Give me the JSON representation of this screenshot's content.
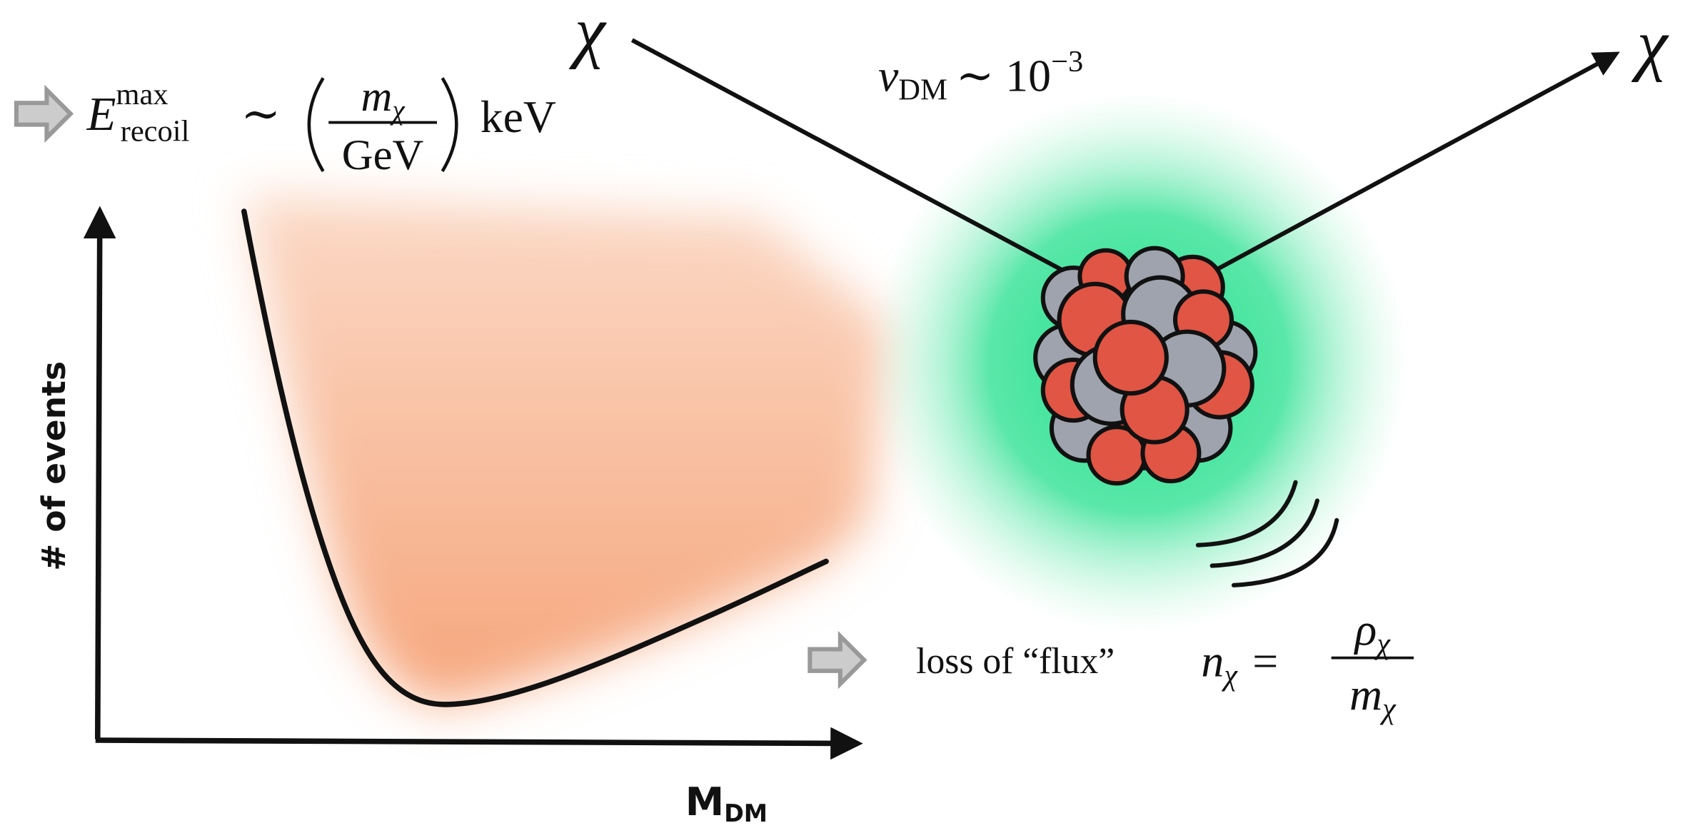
{
  "labels": {
    "chi_in": "χ",
    "chi_out": "χ"
  },
  "velocity": {
    "symbol": "v",
    "subscript": "DM",
    "relation": "∼ 10",
    "exponent": "−3"
  },
  "recoil": {
    "symbol": "E",
    "superscript": "max",
    "subscript": "recoil",
    "relation": "∼",
    "numerator": "m",
    "numerator_sub": "χ",
    "denominator": "GeV",
    "unit": "keV"
  },
  "plot": {
    "y_label": "# of events",
    "x_label": "M",
    "x_label_sub": "DM"
  },
  "flux": {
    "text": "loss of “flux”",
    "lhs": "n",
    "lhs_sub": "χ",
    "relation": "=",
    "numerator": "ρ",
    "numerator_sub": "χ",
    "denominator": "m",
    "denominator_sub": "χ"
  }
}
